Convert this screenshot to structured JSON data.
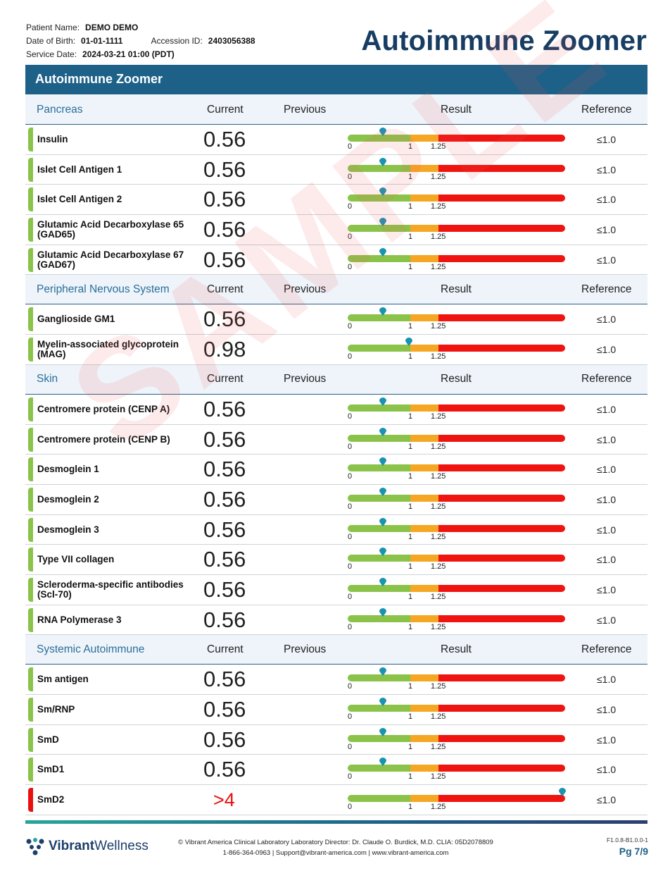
{
  "patient": {
    "name_label": "Patient Name:",
    "name": "DEMO DEMO",
    "dob_label": "Date of Birth:",
    "dob": "01-01-1111",
    "accession_label": "Accession ID:",
    "accession": "2403056388",
    "service_label": "Service Date:",
    "service_date": "2024-03-21 01:00 (PDT)"
  },
  "title": "Autoimmune Zoomer",
  "banner": "Autoimmune Zoomer",
  "columns": {
    "current": "Current",
    "previous": "Previous",
    "result": "Result",
    "reference": "Reference"
  },
  "scale": {
    "t0": "0",
    "t1": "1",
    "t125": "1.25"
  },
  "sections": [
    {
      "name": "Pancreas",
      "tests": [
        {
          "name": "Insulin",
          "current": "0.56",
          "reference": "≤1.0",
          "level": 0.56,
          "status": "normal"
        },
        {
          "name": "Islet Cell Antigen 1",
          "current": "0.56",
          "reference": "≤1.0",
          "level": 0.56,
          "status": "normal"
        },
        {
          "name": "Islet Cell Antigen 2",
          "current": "0.56",
          "reference": "≤1.0",
          "level": 0.56,
          "status": "normal"
        },
        {
          "name": "Glutamic Acid Decarboxylase 65 (GAD65)",
          "current": "0.56",
          "reference": "≤1.0",
          "level": 0.56,
          "status": "normal"
        },
        {
          "name": "Glutamic Acid Decarboxylase 67 (GAD67)",
          "current": "0.56",
          "reference": "≤1.0",
          "level": 0.56,
          "status": "normal"
        }
      ]
    },
    {
      "name": "Peripheral Nervous System",
      "tests": [
        {
          "name": "Ganglioside GM1",
          "current": "0.56",
          "reference": "≤1.0",
          "level": 0.56,
          "status": "normal"
        },
        {
          "name": "Myelin-associated glycoprotein (MAG)",
          "current": "0.98",
          "reference": "≤1.0",
          "level": 0.98,
          "status": "normal"
        }
      ]
    },
    {
      "name": "Skin",
      "tests": [
        {
          "name": "Centromere protein (CENP A)",
          "current": "0.56",
          "reference": "≤1.0",
          "level": 0.56,
          "status": "normal"
        },
        {
          "name": "Centromere protein (CENP B)",
          "current": "0.56",
          "reference": "≤1.0",
          "level": 0.56,
          "status": "normal"
        },
        {
          "name": "Desmoglein 1",
          "current": "0.56",
          "reference": "≤1.0",
          "level": 0.56,
          "status": "normal"
        },
        {
          "name": "Desmoglein 2",
          "current": "0.56",
          "reference": "≤1.0",
          "level": 0.56,
          "status": "normal"
        },
        {
          "name": "Desmoglein 3",
          "current": "0.56",
          "reference": "≤1.0",
          "level": 0.56,
          "status": "normal"
        },
        {
          "name": "Type VII collagen",
          "current": "0.56",
          "reference": "≤1.0",
          "level": 0.56,
          "status": "normal"
        },
        {
          "name": "Scleroderma-specific antibodies (Scl-70)",
          "current": "0.56",
          "reference": "≤1.0",
          "level": 0.56,
          "status": "normal"
        },
        {
          "name": "RNA Polymerase 3",
          "current": "0.56",
          "reference": "≤1.0",
          "level": 0.56,
          "status": "normal"
        }
      ]
    },
    {
      "name": "Systemic Autoimmune",
      "tests": [
        {
          "name": "Sm antigen",
          "current": "0.56",
          "reference": "≤1.0",
          "level": 0.56,
          "status": "normal"
        },
        {
          "name": "Sm/RNP",
          "current": "0.56",
          "reference": "≤1.0",
          "level": 0.56,
          "status": "normal"
        },
        {
          "name": "SmD",
          "current": "0.56",
          "reference": "≤1.0",
          "level": 0.56,
          "status": "normal"
        },
        {
          "name": "SmD1",
          "current": "0.56",
          "reference": "≤1.0",
          "level": 0.56,
          "status": "normal"
        },
        {
          "name": "SmD2",
          "current": ">4",
          "reference": "≤1.0",
          "level": 4,
          "status": "high"
        }
      ]
    }
  ],
  "watermark": "SAMPLE",
  "footer": {
    "brand_bold": "Vibrant",
    "brand_light": "Wellness",
    "line1": "© Vibrant America Clinical Laboratory Laboratory Director: Dr. Claude O. Burdick, M.D. CLIA: 05D2078809",
    "line2": "1-866-364-0963 | Support@vibrant-america.com | www.vibrant-america.com",
    "version": "F1.0.8-B1.0.0-1",
    "page": "Pg 7/9"
  },
  "colors": {
    "accent": "#1d6088",
    "title": "#173d63",
    "normal": "#8bc34a",
    "borderline": "#f5a623",
    "high": "#ef1410"
  }
}
